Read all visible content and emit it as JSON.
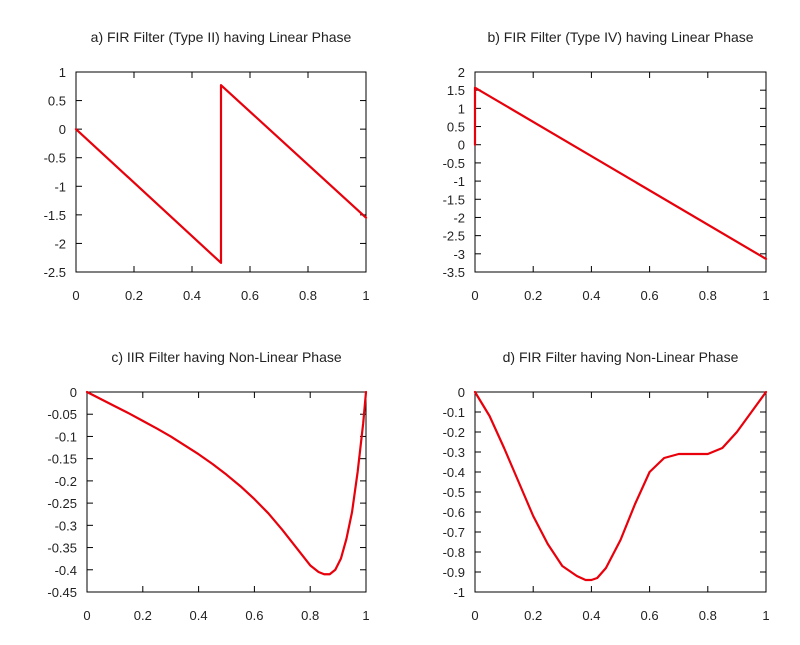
{
  "chart_data": [
    {
      "type": "line",
      "title": "a) FIR Filter (Type II) having Linear Phase",
      "xlabel": "",
      "ylabel": "",
      "xlim": [
        0,
        1
      ],
      "ylim": [
        -2.5,
        1
      ],
      "xticks": [
        {
          "value": 0,
          "label": "0"
        },
        {
          "value": 0.2,
          "label": "0.2"
        },
        {
          "value": 0.4,
          "label": "0.4"
        },
        {
          "value": 0.6,
          "label": "0.6"
        },
        {
          "value": 0.8,
          "label": "0.8"
        },
        {
          "value": 1,
          "label": "1"
        }
      ],
      "yticks": [
        {
          "value": 1,
          "label": "1"
        },
        {
          "value": 0.5,
          "label": "0.5"
        },
        {
          "value": 0,
          "label": "0"
        },
        {
          "value": -0.5,
          "label": "-0.5"
        },
        {
          "value": -1,
          "label": "-1"
        },
        {
          "value": -1.5,
          "label": "-1.5"
        },
        {
          "value": -2,
          "label": "-2"
        },
        {
          "value": -2.5,
          "label": "-2.5"
        }
      ],
      "grid": false,
      "legend": "none",
      "series": [
        {
          "color": "#e8000b",
          "x": [
            0,
            0.5,
            0.5,
            1
          ],
          "y": [
            0,
            -2.34,
            0.77,
            -1.55
          ]
        }
      ]
    },
    {
      "type": "line",
      "title": "b) FIR Filter (Type IV) having Linear Phase",
      "xlabel": "",
      "ylabel": "",
      "xlim": [
        0,
        1
      ],
      "ylim": [
        -3.5,
        2
      ],
      "xticks": [
        {
          "value": 0,
          "label": "0"
        },
        {
          "value": 0.2,
          "label": "0.2"
        },
        {
          "value": 0.4,
          "label": "0.4"
        },
        {
          "value": 0.6,
          "label": "0.6"
        },
        {
          "value": 0.8,
          "label": "0.8"
        },
        {
          "value": 1,
          "label": "1"
        }
      ],
      "yticks": [
        {
          "value": 2,
          "label": "2"
        },
        {
          "value": 1.5,
          "label": "1.5"
        },
        {
          "value": 1,
          "label": "1"
        },
        {
          "value": 0.5,
          "label": "0.5"
        },
        {
          "value": 0,
          "label": "0"
        },
        {
          "value": -0.5,
          "label": "-0.5"
        },
        {
          "value": -1,
          "label": "-1"
        },
        {
          "value": -1.5,
          "label": "-1.5"
        },
        {
          "value": -2,
          "label": "-2"
        },
        {
          "value": -2.5,
          "label": "-2.5"
        },
        {
          "value": -3,
          "label": "-3"
        },
        {
          "value": -3.5,
          "label": "-3.5"
        }
      ],
      "grid": false,
      "legend": "none",
      "series": [
        {
          "color": "#e8000b",
          "x": [
            0,
            0,
            1
          ],
          "y": [
            0,
            1.57,
            -3.14
          ]
        }
      ]
    },
    {
      "type": "line",
      "title": "c) IIR Filter having Non-Linear Phase",
      "xlabel": "",
      "ylabel": "",
      "xlim": [
        0,
        1
      ],
      "ylim": [
        -0.45,
        0
      ],
      "xticks": [
        {
          "value": 0,
          "label": "0"
        },
        {
          "value": 0.2,
          "label": "0.2"
        },
        {
          "value": 0.4,
          "label": "0.4"
        },
        {
          "value": 0.6,
          "label": "0.6"
        },
        {
          "value": 0.8,
          "label": "0.8"
        },
        {
          "value": 1,
          "label": "1"
        }
      ],
      "yticks": [
        {
          "value": 0,
          "label": "0"
        },
        {
          "value": -0.05,
          "label": "-0.05"
        },
        {
          "value": -0.1,
          "label": "-0.1"
        },
        {
          "value": -0.15,
          "label": "-0.15"
        },
        {
          "value": -0.2,
          "label": "-0.2"
        },
        {
          "value": -0.25,
          "label": "-0.25"
        },
        {
          "value": -0.3,
          "label": "-0.3"
        },
        {
          "value": -0.35,
          "label": "-0.35"
        },
        {
          "value": -0.4,
          "label": "-0.4"
        },
        {
          "value": -0.45,
          "label": "-0.45"
        }
      ],
      "grid": false,
      "legend": "none",
      "series": [
        {
          "color": "#e8000b",
          "x": [
            0,
            0.05,
            0.1,
            0.15,
            0.2,
            0.25,
            0.3,
            0.35,
            0.4,
            0.45,
            0.5,
            0.55,
            0.6,
            0.65,
            0.7,
            0.75,
            0.8,
            0.83,
            0.85,
            0.87,
            0.89,
            0.91,
            0.93,
            0.95,
            0.97,
            0.99,
            1
          ],
          "y": [
            0,
            -0.016,
            -0.032,
            -0.048,
            -0.065,
            -0.082,
            -0.1,
            -0.12,
            -0.14,
            -0.162,
            -0.186,
            -0.212,
            -0.241,
            -0.273,
            -0.31,
            -0.35,
            -0.39,
            -0.405,
            -0.41,
            -0.41,
            -0.4,
            -0.375,
            -0.33,
            -0.27,
            -0.18,
            -0.07,
            0
          ]
        }
      ]
    },
    {
      "type": "line",
      "title": "d) FIR Filter having Non-Linear Phase",
      "xlabel": "",
      "ylabel": "",
      "xlim": [
        0,
        1
      ],
      "ylim": [
        -1,
        0
      ],
      "xticks": [
        {
          "value": 0,
          "label": "0"
        },
        {
          "value": 0.2,
          "label": "0.2"
        },
        {
          "value": 0.4,
          "label": "0.4"
        },
        {
          "value": 0.6,
          "label": "0.6"
        },
        {
          "value": 0.8,
          "label": "0.8"
        },
        {
          "value": 1,
          "label": "1"
        }
      ],
      "yticks": [
        {
          "value": 0,
          "label": "0"
        },
        {
          "value": -0.1,
          "label": "-0.1"
        },
        {
          "value": -0.2,
          "label": "-0.2"
        },
        {
          "value": -0.3,
          "label": "-0.3"
        },
        {
          "value": -0.4,
          "label": "-0.4"
        },
        {
          "value": -0.5,
          "label": "-0.5"
        },
        {
          "value": -0.6,
          "label": "-0.6"
        },
        {
          "value": -0.7,
          "label": "-0.7"
        },
        {
          "value": -0.8,
          "label": "-0.8"
        },
        {
          "value": -0.9,
          "label": "-0.9"
        },
        {
          "value": -1,
          "label": "-1"
        }
      ],
      "grid": false,
      "legend": "none",
      "series": [
        {
          "color": "#e8000b",
          "x": [
            0,
            0.05,
            0.1,
            0.15,
            0.2,
            0.25,
            0.3,
            0.35,
            0.38,
            0.4,
            0.42,
            0.45,
            0.5,
            0.55,
            0.6,
            0.65,
            0.7,
            0.75,
            0.8,
            0.85,
            0.9,
            0.95,
            1
          ],
          "y": [
            0,
            -0.12,
            -0.28,
            -0.45,
            -0.62,
            -0.76,
            -0.87,
            -0.92,
            -0.94,
            -0.94,
            -0.93,
            -0.88,
            -0.74,
            -0.56,
            -0.4,
            -0.33,
            -0.31,
            -0.31,
            -0.31,
            -0.28,
            -0.2,
            -0.1,
            0
          ]
        }
      ]
    }
  ]
}
